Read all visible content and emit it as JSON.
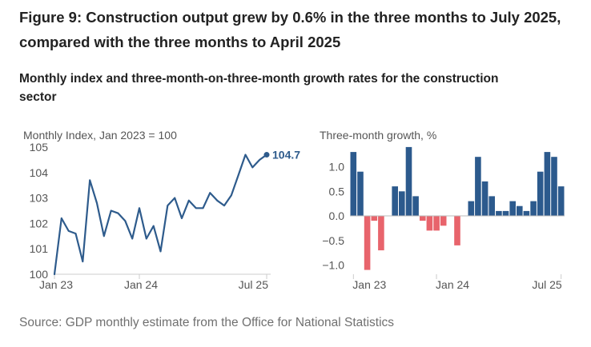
{
  "title": "Figure 9: Construction output grew by 0.6% in the three months to July 2025, compared with the three months to April 2025",
  "subtitle": "Monthly index and three-month-on-three-month growth rates for the construction sector",
  "source": "Source: GDP monthly estimate from the Office for National Statistics",
  "colors": {
    "line": "#2e5b8c",
    "positive": "#2c5a8d",
    "negative": "#e8646c",
    "axis": "#cccccc",
    "text": "#555555"
  },
  "chart_data": [
    {
      "type": "line",
      "ylabel": "Monthly Index, Jan 2023 = 100",
      "x_tick_labels": [
        "Jan 23",
        "Jan 24",
        "Jul 25"
      ],
      "ylim": [
        100,
        105
      ],
      "y_ticks": [
        100,
        101,
        102,
        103,
        104,
        105
      ],
      "annotation": "104.7",
      "series": [
        {
          "values": [
            100.0,
            102.2,
            101.7,
            101.6,
            100.5,
            103.7,
            102.8,
            101.5,
            102.5,
            102.4,
            102.1,
            101.4,
            102.6,
            101.4,
            101.9,
            100.9,
            102.7,
            103.0,
            102.2,
            102.9,
            102.6,
            102.6,
            103.2,
            102.9,
            102.7,
            103.1,
            103.9,
            104.7,
            104.2,
            104.5,
            104.7
          ]
        }
      ]
    },
    {
      "type": "bar",
      "ylabel": "Three-month growth, %",
      "x_tick_labels": [
        "Jan 23",
        "Jan 24",
        "Jul 25"
      ],
      "ylim": [
        -1.2,
        1.5
      ],
      "y_ticks": [
        1.0,
        0.5,
        0.0,
        -0.5,
        -1.0
      ],
      "y_tick_labels": [
        "1.0",
        "0.5",
        "0.0",
        "−0.5",
        "−1.0"
      ],
      "series": [
        {
          "values": [
            1.3,
            0.9,
            -1.1,
            -0.1,
            -0.7,
            null,
            0.6,
            0.5,
            1.4,
            0.4,
            -0.1,
            -0.3,
            -0.3,
            -0.2,
            null,
            -0.6,
            null,
            0.3,
            1.2,
            0.7,
            0.4,
            0.1,
            0.1,
            0.3,
            0.2,
            0.1,
            0.3,
            0.9,
            1.3,
            1.2,
            0.6
          ]
        }
      ]
    }
  ]
}
